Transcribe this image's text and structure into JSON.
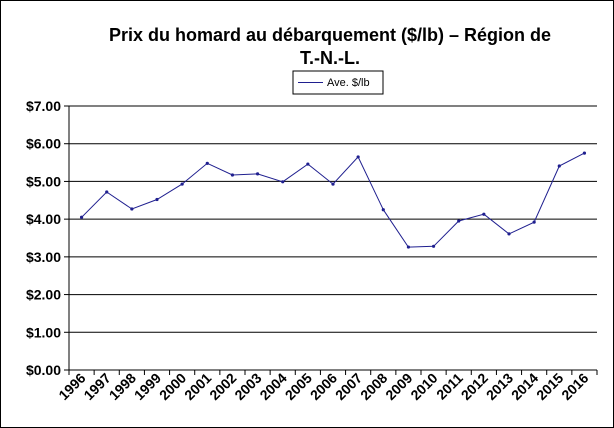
{
  "chart_data": {
    "type": "line",
    "title_lines": [
      "Prix du homard au débarquement ($/lb) – Région de",
      "T.-N.-L."
    ],
    "xlabel": "",
    "ylabel": "",
    "ylim": [
      0,
      7
    ],
    "y_ticks": [
      "$0.00",
      "$1.00",
      "$2.00",
      "$3.00",
      "$4.00",
      "$5.00",
      "$6.00",
      "$7.00"
    ],
    "categories": [
      "1996",
      "1997",
      "1998",
      "1999",
      "2000",
      "2001",
      "2002",
      "2003",
      "2004",
      "2005",
      "2006",
      "2007",
      "2008",
      "2009",
      "2010",
      "2011",
      "2012",
      "2013",
      "2014",
      "2015",
      "2016"
    ],
    "series": [
      {
        "name": "Ave. $/lb",
        "color": "#1f1f8f",
        "values": [
          4.05,
          4.72,
          4.27,
          4.52,
          4.93,
          5.48,
          5.17,
          5.2,
          4.99,
          5.46,
          4.93,
          5.65,
          4.25,
          3.26,
          3.28,
          3.95,
          4.13,
          3.61,
          3.92,
          5.41,
          5.75
        ]
      }
    ],
    "grid": true,
    "legend_position": "top-center"
  }
}
